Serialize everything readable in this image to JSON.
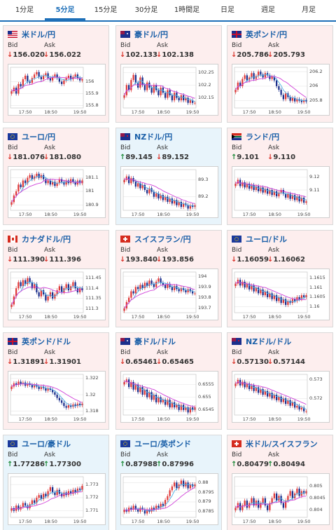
{
  "tabs": [
    "1分足",
    "5分足",
    "15分足",
    "30分足",
    "1時間足",
    "日足",
    "週足",
    "月足"
  ],
  "active_tab": 1,
  "labels": {
    "bid": "Bid",
    "ask": "Ask"
  },
  "colors": {
    "down_bg": "#fdeeee",
    "up_bg": "#e8f4fb",
    "title": "#1a5fa8",
    "arrow_down": "#d9342b",
    "arrow_up": "#1f8a3a",
    "candle_up": "#e03a3a",
    "candle_down": "#1b2f8c",
    "ma_fast": "#4fb0e6",
    "ma_slow": "#d040d8"
  },
  "cards": [
    {
      "name": "米ドル/円",
      "flag": "us",
      "dir": "down",
      "bid": "156.020",
      "ask": "156.022",
      "bid_dir": "down",
      "ask_dir": "down",
      "chart_data": {
        "type": "candlestick",
        "x_ticks": [
          "17:50",
          "18:50",
          "19:50"
        ],
        "y_ticks": [
          "156",
          "155.9",
          "155.8"
        ],
        "ylim": [
          155.78,
          156.12
        ],
        "close": [
          155.92,
          155.95,
          155.9,
          155.98,
          155.96,
          156.02,
          156.05,
          156.0,
          155.99,
          156.03,
          156.06,
          156.08,
          156.04,
          156.02,
          156.05,
          156.07,
          156.03,
          156.01,
          156.04,
          156.06,
          156.03,
          156.0,
          155.98,
          156.01,
          156.03,
          156.05,
          156.02,
          156.04,
          156.06,
          156.03,
          156.01,
          156.02
        ]
      }
    },
    {
      "name": "豪ドル/円",
      "flag": "au",
      "dir": "down",
      "bid": "102.133",
      "ask": "102.138",
      "bid_dir": "down",
      "ask_dir": "down",
      "chart_data": {
        "type": "candlestick",
        "x_ticks": [
          "17:50",
          "18:50",
          "19:50"
        ],
        "y_ticks": [
          "102.25",
          "102.2",
          "102.15"
        ],
        "ylim": [
          102.11,
          102.27
        ],
        "close": [
          102.16,
          102.2,
          102.18,
          102.22,
          102.24,
          102.21,
          102.19,
          102.23,
          102.2,
          102.18,
          102.21,
          102.19,
          102.17,
          102.2,
          102.18,
          102.16,
          102.19,
          102.17,
          102.15,
          102.18,
          102.16,
          102.14,
          102.17,
          102.15,
          102.14,
          102.16,
          102.14,
          102.15,
          102.13,
          102.14,
          102.13,
          102.13
        ]
      }
    },
    {
      "name": "英ポンド/円",
      "flag": "gb",
      "dir": "down",
      "bid": "205.786",
      "ask": "205.793",
      "bid_dir": "down",
      "ask_dir": "down",
      "chart_data": {
        "type": "candlestick",
        "x_ticks": [
          "17:50",
          "18:50",
          "19:50"
        ],
        "y_ticks": [
          "206.2",
          "206",
          "205.8"
        ],
        "ylim": [
          205.7,
          206.26
        ],
        "close": [
          205.95,
          206.05,
          206.0,
          206.1,
          206.15,
          206.08,
          206.12,
          206.18,
          206.1,
          206.14,
          206.2,
          206.16,
          206.12,
          206.18,
          206.15,
          206.1,
          206.13,
          206.08,
          206.0,
          205.95,
          205.88,
          205.82,
          205.9,
          205.85,
          205.8,
          205.84,
          205.79,
          205.82,
          205.8,
          205.78,
          205.81,
          205.79
        ]
      }
    },
    {
      "name": "ユーロ/円",
      "flag": "eu",
      "dir": "down",
      "bid": "181.076",
      "ask": "181.080",
      "bid_dir": "down",
      "ask_dir": "down",
      "chart_data": {
        "type": "candlestick",
        "x_ticks": [
          "17:50",
          "18:50",
          "19:50"
        ],
        "y_ticks": [
          "181.1",
          "181",
          "180.9"
        ],
        "ylim": [
          180.86,
          181.16
        ],
        "close": [
          180.92,
          180.97,
          181.0,
          181.05,
          181.03,
          181.08,
          181.06,
          181.1,
          181.12,
          181.09,
          181.11,
          181.13,
          181.1,
          181.12,
          181.09,
          181.06,
          181.08,
          181.05,
          181.07,
          181.04,
          181.06,
          181.09,
          181.07,
          181.05,
          181.08,
          181.06,
          181.09,
          181.07,
          181.05,
          181.08,
          181.06,
          181.08
        ]
      }
    },
    {
      "name": "NZドル/円",
      "flag": "nz",
      "dir": "up",
      "bid": "89.145",
      "ask": "89.152",
      "bid_dir": "up",
      "ask_dir": "down",
      "chart_data": {
        "type": "candlestick",
        "x_ticks": [
          "17:50",
          "18:50",
          "19:50"
        ],
        "y_ticks": [
          "89.3",
          "89.2"
        ],
        "ylim": [
          89.12,
          89.36
        ],
        "close": [
          89.3,
          89.32,
          89.28,
          89.31,
          89.29,
          89.26,
          89.28,
          89.25,
          89.27,
          89.24,
          89.22,
          89.25,
          89.23,
          89.2,
          89.22,
          89.19,
          89.21,
          89.18,
          89.2,
          89.17,
          89.19,
          89.16,
          89.18,
          89.15,
          89.17,
          89.14,
          89.16,
          89.15,
          89.13,
          89.15,
          89.14,
          89.15
        ]
      }
    },
    {
      "name": "ランド/円",
      "flag": "za",
      "dir": "down",
      "bid": "9.101",
      "ask": "9.110",
      "bid_dir": "up",
      "ask_dir": "down",
      "chart_data": {
        "type": "candlestick",
        "x_ticks": [
          "17:50",
          "18:50",
          "19:50"
        ],
        "y_ticks": [
          "9.12",
          "9.11"
        ],
        "ylim": [
          9.094,
          9.126
        ],
        "close": [
          9.115,
          9.118,
          9.113,
          9.116,
          9.112,
          9.115,
          9.111,
          9.114,
          9.11,
          9.113,
          9.109,
          9.112,
          9.108,
          9.111,
          9.107,
          9.11,
          9.106,
          9.109,
          9.105,
          9.108,
          9.11,
          9.107,
          9.104,
          9.107,
          9.103,
          9.106,
          9.102,
          9.105,
          9.101,
          9.104,
          9.1,
          9.101
        ]
      }
    },
    {
      "name": "カナダドル/円",
      "flag": "ca",
      "dir": "down",
      "bid": "111.390",
      "ask": "111.396",
      "bid_dir": "down",
      "ask_dir": "down",
      "chart_data": {
        "type": "candlestick",
        "x_ticks": [
          "17:50",
          "18:50",
          "19:50"
        ],
        "y_ticks": [
          "111.45",
          "111.4",
          "111.35",
          "111.3"
        ],
        "ylim": [
          111.28,
          111.48
        ],
        "close": [
          111.32,
          111.36,
          111.4,
          111.43,
          111.41,
          111.44,
          111.42,
          111.45,
          111.43,
          111.4,
          111.42,
          111.38,
          111.36,
          111.39,
          111.37,
          111.34,
          111.36,
          111.38,
          111.35,
          111.37,
          111.39,
          111.41,
          111.38,
          111.4,
          111.42,
          111.39,
          111.41,
          111.43,
          111.4,
          111.38,
          111.4,
          111.39
        ]
      }
    },
    {
      "name": "スイスフラン/円",
      "flag": "ch",
      "dir": "down",
      "bid": "193.840",
      "ask": "193.856",
      "bid_dir": "down",
      "ask_dir": "down",
      "chart_data": {
        "type": "candlestick",
        "x_ticks": [
          "17:50",
          "18:50",
          "19:50"
        ],
        "y_ticks": [
          "194",
          "193.9",
          "193.8",
          "193.7"
        ],
        "ylim": [
          193.66,
          194.04
        ],
        "close": [
          193.7,
          193.76,
          193.8,
          193.86,
          193.84,
          193.9,
          193.88,
          193.92,
          193.89,
          193.94,
          193.91,
          193.96,
          193.93,
          193.9,
          193.95,
          193.98,
          193.94,
          193.92,
          193.89,
          193.93,
          193.9,
          193.87,
          193.91,
          193.88,
          193.86,
          193.89,
          193.87,
          193.85,
          193.88,
          193.86,
          193.84,
          193.84
        ]
      }
    },
    {
      "name": "ユーロ/ドル",
      "flag": "eu",
      "dir": "down",
      "bid": "1.16059",
      "ask": "1.16062",
      "bid_dir": "down",
      "ask_dir": "down",
      "chart_data": {
        "type": "candlestick",
        "x_ticks": [
          "17:50",
          "18:50",
          "19:50"
        ],
        "y_ticks": [
          "1.1615",
          "1.161",
          "1.1605",
          "1.16"
        ],
        "ylim": [
          1.1597,
          1.1618
        ],
        "close": [
          1.1612,
          1.1614,
          1.1611,
          1.1613,
          1.161,
          1.1612,
          1.1609,
          1.1611,
          1.1608,
          1.161,
          1.1607,
          1.1609,
          1.1606,
          1.1608,
          1.1605,
          1.1607,
          1.1604,
          1.1606,
          1.1603,
          1.1605,
          1.1602,
          1.1604,
          1.1601,
          1.1603,
          1.1602,
          1.1604,
          1.1603,
          1.1605,
          1.1604,
          1.1606,
          1.1605,
          1.1606
        ]
      }
    },
    {
      "name": "英ポンド/ドル",
      "flag": "gb",
      "dir": "down",
      "bid": "1.31891",
      "ask": "1.31901",
      "bid_dir": "down",
      "ask_dir": "down",
      "chart_data": {
        "type": "candlestick",
        "x_ticks": [
          "17:50",
          "18:50",
          "19:50"
        ],
        "y_ticks": [
          "1.322",
          "1.32",
          "1.318"
        ],
        "ylim": [
          1.3175,
          1.3225
        ],
        "close": [
          1.321,
          1.3214,
          1.3212,
          1.3216,
          1.3213,
          1.3215,
          1.3211,
          1.3214,
          1.3212,
          1.3209,
          1.3212,
          1.321,
          1.3207,
          1.321,
          1.3208,
          1.3205,
          1.3208,
          1.3206,
          1.3203,
          1.32,
          1.3196,
          1.3193,
          1.319,
          1.3186,
          1.3184,
          1.3187,
          1.3185,
          1.3188,
          1.3186,
          1.3189,
          1.3187,
          1.3189
        ]
      }
    },
    {
      "name": "豪ドル/ドル",
      "flag": "au",
      "dir": "down",
      "bid": "0.65461",
      "ask": "0.65465",
      "bid_dir": "down",
      "ask_dir": "down",
      "chart_data": {
        "type": "candlestick",
        "x_ticks": [
          "17:50",
          "18:50",
          "19:50"
        ],
        "y_ticks": [
          "0.6555",
          "0.655",
          "0.6545"
        ],
        "ylim": [
          0.6543,
          0.6559
        ],
        "close": [
          0.6556,
          0.6557,
          0.6554,
          0.6556,
          0.6553,
          0.6555,
          0.6552,
          0.6554,
          0.6551,
          0.6553,
          0.655,
          0.6552,
          0.6549,
          0.6551,
          0.6548,
          0.655,
          0.6548,
          0.6549,
          0.6547,
          0.6549,
          0.6546,
          0.6548,
          0.6546,
          0.6547,
          0.6545,
          0.6547,
          0.6545,
          0.6546,
          0.6544,
          0.6546,
          0.6545,
          0.6546
        ]
      }
    },
    {
      "name": "NZドル/ドル",
      "flag": "nz",
      "dir": "down",
      "bid": "0.57130",
      "ask": "0.57144",
      "bid_dir": "down",
      "ask_dir": "down",
      "chart_data": {
        "type": "candlestick",
        "x_ticks": [
          "17:50",
          "18:50",
          "19:50"
        ],
        "y_ticks": [
          "0.573",
          "0.572"
        ],
        "ylim": [
          0.5711,
          0.5733
        ],
        "close": [
          0.5728,
          0.573,
          0.5727,
          0.5729,
          0.5726,
          0.5728,
          0.5725,
          0.5727,
          0.5724,
          0.5726,
          0.5723,
          0.5725,
          0.5722,
          0.5724,
          0.5721,
          0.5723,
          0.572,
          0.5722,
          0.5719,
          0.5721,
          0.5718,
          0.572,
          0.5717,
          0.5719,
          0.5716,
          0.5718,
          0.5715,
          0.5716,
          0.5714,
          0.5715,
          0.5713,
          0.5713
        ]
      }
    },
    {
      "name": "ユーロ/豪ドル",
      "flag": "eu",
      "dir": "up",
      "bid": "1.77286",
      "ask": "1.77300",
      "bid_dir": "up",
      "ask_dir": "up",
      "chart_data": {
        "type": "candlestick",
        "x_ticks": [
          "17:50",
          "18:50",
          "19:50"
        ],
        "y_ticks": [
          "1.773",
          "1.772",
          "1.771"
        ],
        "ylim": [
          1.7705,
          1.7736
        ],
        "close": [
          1.7712,
          1.771,
          1.7714,
          1.7711,
          1.7713,
          1.7716,
          1.7714,
          1.7712,
          1.7715,
          1.7718,
          1.7716,
          1.772,
          1.7722,
          1.7719,
          1.7723,
          1.7721,
          1.7725,
          1.7728,
          1.7724,
          1.7722,
          1.7726,
          1.7723,
          1.7721,
          1.7724,
          1.7722,
          1.7725,
          1.7723,
          1.7726,
          1.7724,
          1.7727,
          1.7726,
          1.7729
        ]
      }
    },
    {
      "name": "ユーロ/英ポンド",
      "flag": "eu",
      "dir": "up",
      "bid": "0.87988",
      "ask": "0.87996",
      "bid_dir": "up",
      "ask_dir": "up",
      "chart_data": {
        "type": "candlestick",
        "x_ticks": [
          "17:50",
          "18:50",
          "19:50"
        ],
        "y_ticks": [
          "0.88",
          "0.8795",
          "0.879",
          "0.8785"
        ],
        "ylim": [
          0.8782,
          0.8803
        ],
        "close": [
          0.8786,
          0.8785,
          0.8787,
          0.8786,
          0.8788,
          0.8786,
          0.8785,
          0.8787,
          0.8786,
          0.8784,
          0.8786,
          0.8785,
          0.8787,
          0.8786,
          0.8788,
          0.8787,
          0.8789,
          0.8788,
          0.8791,
          0.8793,
          0.8796,
          0.8798,
          0.88,
          0.8797,
          0.8799,
          0.8801,
          0.8798,
          0.88,
          0.8797,
          0.8799,
          0.8798,
          0.8799
        ]
      }
    },
    {
      "name": "米ドル/スイスフラン",
      "flag": "ch",
      "dir": "down",
      "bid": "0.80479",
      "ask": "0.80494",
      "bid_dir": "up",
      "ask_dir": "up",
      "chart_data": {
        "type": "candlestick",
        "x_ticks": [
          "17:50",
          "18:50",
          "19:50"
        ],
        "y_ticks": [
          "0.805",
          "0.8045",
          "0.804"
        ],
        "ylim": [
          0.8037,
          0.8054
        ],
        "close": [
          0.8041,
          0.8043,
          0.804,
          0.8042,
          0.8044,
          0.8041,
          0.8043,
          0.8045,
          0.8042,
          0.8044,
          0.8041,
          0.8043,
          0.8045,
          0.8042,
          0.804,
          0.8043,
          0.8045,
          0.8047,
          0.8044,
          0.8046,
          0.8043,
          0.8041,
          0.8044,
          0.8046,
          0.8048,
          0.8045,
          0.8047,
          0.8049,
          0.8046,
          0.8048,
          0.8047,
          0.8048
        ]
      }
    }
  ]
}
